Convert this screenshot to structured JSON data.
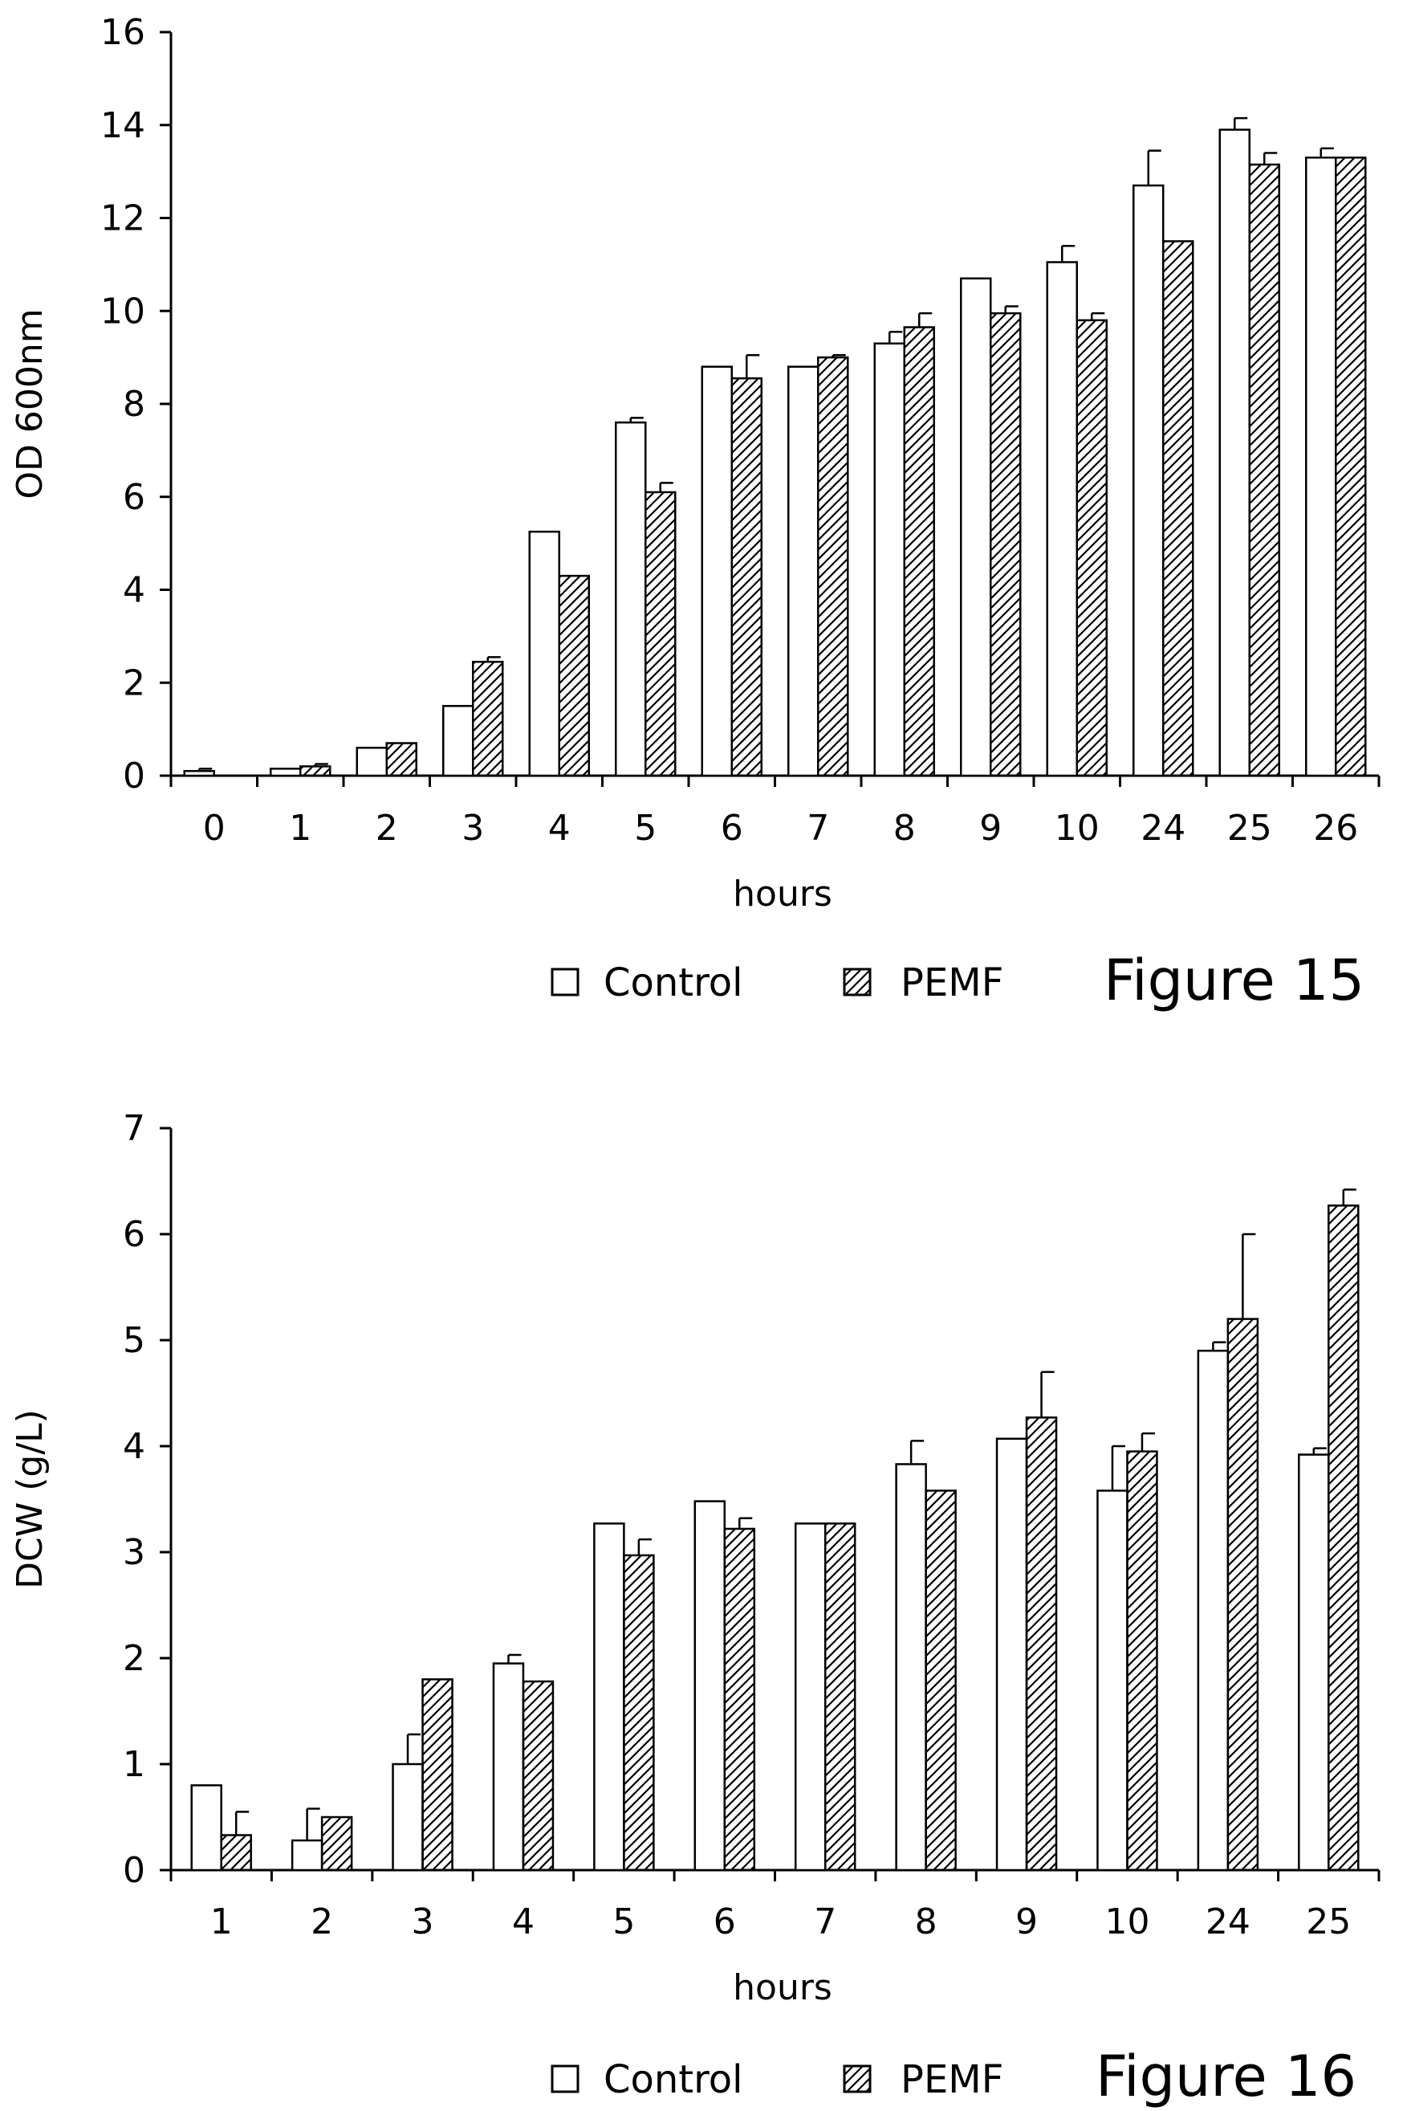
{
  "chart_data": [
    {
      "type": "bar",
      "figure_label": "Figure 15",
      "xlabel": "hours",
      "ylabel": "OD 600nm",
      "ylim": [
        0,
        16
      ],
      "yticks": [
        0,
        2,
        4,
        6,
        8,
        10,
        12,
        14,
        16
      ],
      "categories": [
        "0",
        "1",
        "2",
        "3",
        "4",
        "5",
        "6",
        "7",
        "8",
        "9",
        "10",
        "24",
        "25",
        "26"
      ],
      "legend_position": "bottom",
      "series": [
        {
          "name": "Control",
          "fill": "open",
          "values": [
            0.1,
            0.15,
            0.6,
            1.5,
            5.25,
            7.6,
            8.8,
            8.8,
            9.3,
            10.7,
            11.05,
            12.7,
            13.9,
            13.3
          ],
          "errors": [
            0.05,
            0,
            0,
            0,
            0,
            0.1,
            0,
            0,
            0.25,
            0,
            0.35,
            0.75,
            0.25,
            0.2
          ]
        },
        {
          "name": "PEMF",
          "fill": "hatched",
          "values": [
            0,
            0.2,
            0.7,
            2.45,
            4.3,
            6.1,
            8.55,
            9.0,
            9.65,
            9.95,
            9.8,
            11.5,
            13.15,
            13.3
          ],
          "errors": [
            0,
            0.05,
            0,
            0.1,
            0,
            0.2,
            0.5,
            0.05,
            0.3,
            0.15,
            0.15,
            0,
            0.25,
            0
          ]
        }
      ]
    },
    {
      "type": "bar",
      "figure_label": "Figure 16",
      "xlabel": "hours",
      "ylabel": "DCW (g/L)",
      "ylim": [
        0,
        7
      ],
      "yticks": [
        0,
        1,
        2,
        3,
        4,
        5,
        6,
        7
      ],
      "categories": [
        "1",
        "2",
        "3",
        "4",
        "5",
        "6",
        "7",
        "8",
        "9",
        "10",
        "24",
        "25"
      ],
      "legend_position": "bottom",
      "series": [
        {
          "name": "Control",
          "fill": "open",
          "values": [
            0.8,
            0.28,
            1.0,
            1.95,
            3.27,
            3.48,
            3.27,
            3.83,
            4.07,
            3.58,
            4.9,
            3.92
          ],
          "errors": [
            0,
            0.3,
            0.28,
            0.08,
            0,
            0,
            0,
            0.22,
            0,
            0.42,
            0.08,
            0.06
          ]
        },
        {
          "name": "PEMF",
          "fill": "hatched",
          "values": [
            0.33,
            0.5,
            1.8,
            1.78,
            2.97,
            3.22,
            3.27,
            3.58,
            4.27,
            3.95,
            5.2,
            6.27
          ],
          "errors": [
            0.22,
            0,
            0,
            0,
            0.15,
            0.1,
            0,
            0,
            0.43,
            0.17,
            0.8,
            0.15
          ]
        }
      ]
    }
  ]
}
